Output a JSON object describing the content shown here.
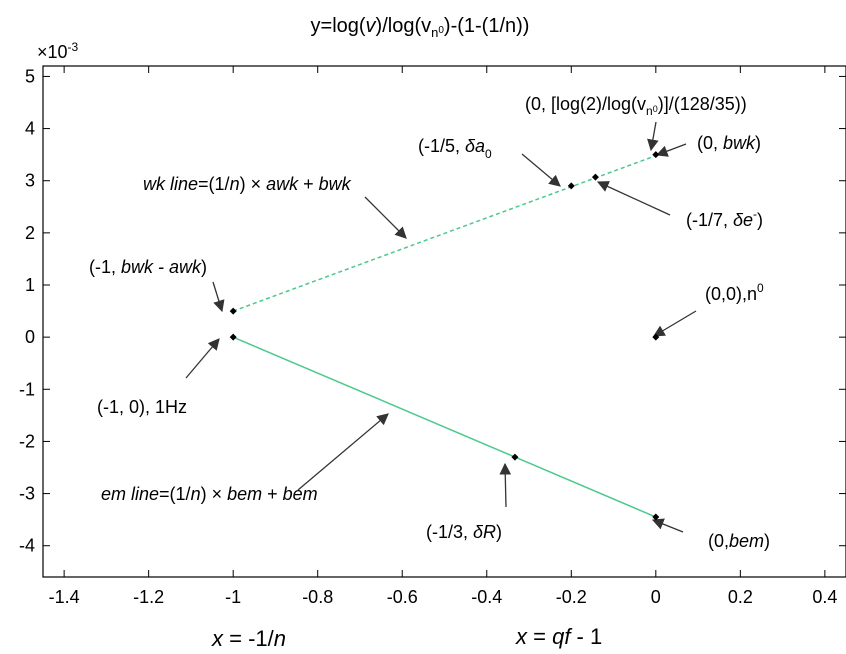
{
  "chart_data": {
    "type": "scatter",
    "title": "y=log(v)/log(v_n0)-(1-(1/n))",
    "title_parts": [
      "y=log(",
      "v",
      ")/log(v",
      "n",
      "0",
      ")-(1-(1/n))"
    ],
    "y_exponent": "×10",
    "y_exponent_power": "-3",
    "xlabel_parts": [
      "x",
      " = -1/",
      "n"
    ],
    "xlabel2_parts": [
      "x",
      " = ",
      "qf",
      " - 1"
    ],
    "xlim": [
      -1.45,
      0.45
    ],
    "ylim": [
      -4.6,
      5.2
    ],
    "x_ticks": [
      -1.4,
      -1.2,
      -1,
      -0.8,
      -0.6,
      -0.4,
      -0.2,
      0,
      0.2,
      0.4
    ],
    "x_tick_labels": [
      "-1.4",
      "-1.2",
      "-1",
      "-0.8",
      "-0.6",
      "-0.4",
      "-0.2",
      "0",
      "0.2",
      "0.4"
    ],
    "y_ticks": [
      -4,
      -3,
      -2,
      -1,
      0,
      1,
      2,
      3,
      4,
      5
    ],
    "y_tick_labels": [
      "-4",
      "-3",
      "-2",
      "-1",
      "0",
      "1",
      "2",
      "3",
      "4",
      "5"
    ],
    "grid": false,
    "colors": {
      "line": "#4cc98a",
      "point": "#000000",
      "arrow": "#333333"
    },
    "series": [
      {
        "style": "dashed",
        "x": [
          -1,
          0
        ],
        "y": [
          0.5,
          3.48
        ]
      },
      {
        "style": "solid",
        "x": [
          -1,
          0
        ],
        "y": [
          0.0,
          -3.45
        ]
      }
    ],
    "points": [
      {
        "x": -1,
        "y": 0.5
      },
      {
        "x": -0.2,
        "y": 2.9
      },
      {
        "x": -0.142857,
        "y": 3.07
      },
      {
        "x": 0,
        "y": 3.5
      },
      {
        "x": -1,
        "y": 0.0
      },
      {
        "x": -0.333333,
        "y": -2.3
      },
      {
        "x": 0,
        "y": -3.45
      },
      {
        "x": 0,
        "y": 0.0
      }
    ],
    "annotations": {
      "wkline": [
        "wk line",
        "=(1/",
        "n",
        ") × ",
        "awk",
        " + ",
        "bwk"
      ],
      "emline": [
        "em line",
        "=(1/",
        "n",
        ") × ",
        "bem",
        " + ",
        "bem"
      ],
      "a_bwk_awk": [
        "(-1, ",
        "bwk - awk",
        ")"
      ],
      "a_one_hz": "(-1, 0), 1Hz",
      "a_delta_a0": [
        "(-1/5, ",
        "δa",
        "0"
      ],
      "a_log2": [
        "(0, [log(2)/log(v",
        "n",
        "0",
        ")]/(128/35))"
      ],
      "a_bwk": [
        "(0, ",
        "bwk",
        ")"
      ],
      "a_delta_e": [
        "(-1/7, ",
        "δe",
        "-",
        ")"
      ],
      "a_n0": [
        "(0,0),n",
        "0"
      ],
      "a_delta_r": [
        "(-1/3, ",
        "δR",
        ")"
      ],
      "a_bem": [
        "(0,",
        "bem",
        ")"
      ]
    }
  }
}
